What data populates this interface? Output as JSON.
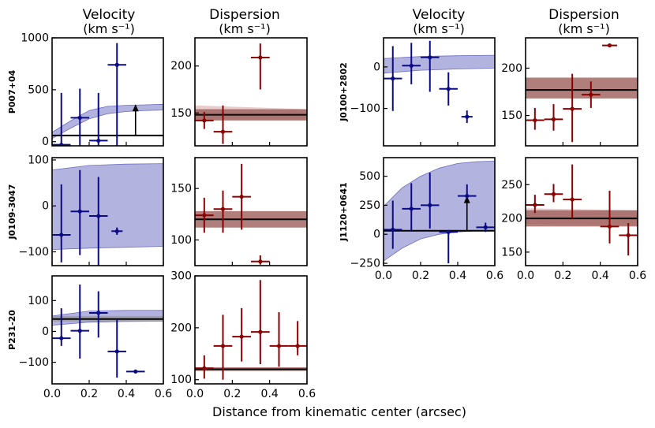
{
  "figure": {
    "xlabel": "Distance from kinematic center (arcsec)",
    "col_velocity_title": "Velocity",
    "col_dispersion_title": "Dispersion",
    "units": "(km s⁻¹)"
  },
  "colors": {
    "velocity_points": "#0b0b86",
    "dispersion_points": "#8b0000",
    "velocity_band": "#9a9ad6",
    "dispersion_band": "#9e5f5a",
    "band_gray": "#9a9a9a",
    "axis": "#000000"
  },
  "chart_data": [
    {
      "type": "scatter",
      "galaxy": "P007+04",
      "quantity": "Velocity",
      "xlim": [
        0,
        0.6
      ],
      "ylim": [
        -40,
        1000
      ],
      "yticks": [
        0,
        500,
        1000
      ],
      "xticks": [
        0.0,
        0.2,
        0.4,
        0.6
      ],
      "points": [
        {
          "x": 0.05,
          "y": -30,
          "xerr": 0.05,
          "yerr_lo": 70,
          "yerr_hi": 500
        },
        {
          "x": 0.15,
          "y": 230,
          "xerr": 0.05,
          "yerr_lo": 290,
          "yerr_hi": 280
        },
        {
          "x": 0.25,
          "y": 10,
          "xerr": 0.05,
          "yerr_lo": 60,
          "yerr_hi": 460
        },
        {
          "x": 0.35,
          "y": 740,
          "xerr": 0.05,
          "yerr_lo": 790,
          "yerr_hi": 210
        }
      ],
      "lower_limits": [
        {
          "x": 0.45,
          "y": 60,
          "to": 360
        }
      ],
      "model_band": {
        "x": [
          0,
          0.1,
          0.2,
          0.3,
          0.4,
          0.5,
          0.6
        ],
        "lo": [
          30,
          130,
          220,
          270,
          290,
          300,
          305
        ],
        "hi": [
          90,
          200,
          300,
          340,
          350,
          355,
          360
        ]
      },
      "hline": 60
    },
    {
      "type": "scatter",
      "galaxy": "P007+04",
      "quantity": "Dispersion",
      "xlim": [
        0,
        0.6
      ],
      "ylim": [
        115,
        230
      ],
      "yticks": [
        150,
        200
      ],
      "xticks": [
        0.0,
        0.2,
        0.4,
        0.6
      ],
      "points": [
        {
          "x": 0.05,
          "y": 142,
          "xerr": 0.05,
          "yerr_lo": 9,
          "yerr_hi": 9
        },
        {
          "x": 0.15,
          "y": 130,
          "xerr": 0.05,
          "yerr_lo": 13,
          "yerr_hi": 28
        },
        {
          "x": 0.35,
          "y": 209,
          "xerr": 0.05,
          "yerr_lo": 34,
          "yerr_hi": 15
        }
      ],
      "band": {
        "lo": 142,
        "hi": 154
      },
      "band2": {
        "x": [
          0,
          0.6
        ],
        "lo": [
          143,
          143
        ],
        "hi": [
          158,
          154
        ]
      },
      "hline": 148
    },
    {
      "type": "scatter",
      "galaxy": "J0109-3047",
      "quantity": "Velocity",
      "xlim": [
        0,
        0.6
      ],
      "ylim": [
        -130,
        105
      ],
      "yticks": [
        -100,
        0,
        100
      ],
      "xticks": [
        0.0,
        0.2,
        0.4,
        0.6
      ],
      "points": [
        {
          "x": 0.05,
          "y": -63,
          "xerr": 0.05,
          "yerr_lo": 60,
          "yerr_hi": 110
        },
        {
          "x": 0.15,
          "y": -12,
          "xerr": 0.05,
          "yerr_lo": 95,
          "yerr_hi": 90
        },
        {
          "x": 0.25,
          "y": -22,
          "xerr": 0.05,
          "yerr_lo": 110,
          "yerr_hi": 85
        },
        {
          "x": 0.35,
          "y": -55,
          "xerr": 0.03,
          "yerr_lo": 8,
          "yerr_hi": 8
        }
      ],
      "model_band": {
        "x": [
          0,
          0.2,
          0.4,
          0.6
        ],
        "lo": [
          -95,
          -92,
          -90,
          -88
        ],
        "hi": [
          78,
          88,
          91,
          92
        ]
      }
    },
    {
      "type": "scatter",
      "galaxy": "J0109-3047",
      "quantity": "Dispersion",
      "xlim": [
        0,
        0.6
      ],
      "ylim": [
        75,
        180
      ],
      "yticks": [
        100,
        150
      ],
      "xticks": [
        0.0,
        0.2,
        0.4,
        0.6
      ],
      "points": [
        {
          "x": 0.05,
          "y": 124,
          "xerr": 0.05,
          "yerr_lo": 17,
          "yerr_hi": 17
        },
        {
          "x": 0.15,
          "y": 130,
          "xerr": 0.05,
          "yerr_lo": 23,
          "yerr_hi": 18
        },
        {
          "x": 0.25,
          "y": 142,
          "xerr": 0.05,
          "yerr_lo": 32,
          "yerr_hi": 32
        },
        {
          "x": 0.35,
          "y": 79,
          "xerr": 0.05,
          "yerr_lo": 3,
          "yerr_hi": 6
        }
      ],
      "band": {
        "lo": 112,
        "hi": 128
      },
      "hline": 120
    },
    {
      "type": "scatter",
      "galaxy": "P231-20",
      "quantity": "Velocity",
      "xlim": [
        0,
        0.6
      ],
      "ylim": [
        -170,
        180
      ],
      "yticks": [
        -100,
        0,
        100
      ],
      "xticks": [
        0.0,
        0.2,
        0.4,
        0.6
      ],
      "xticklabels": [
        "0.0",
        "0.2",
        "0.4",
        "0.6"
      ],
      "points": [
        {
          "x": 0.05,
          "y": -22,
          "xerr": 0.05,
          "yerr_lo": 25,
          "yerr_hi": 97
        },
        {
          "x": 0.15,
          "y": 2,
          "xerr": 0.05,
          "yerr_lo": 90,
          "yerr_hi": 150
        },
        {
          "x": 0.25,
          "y": 60,
          "xerr": 0.05,
          "yerr_lo": 80,
          "yerr_hi": 70
        },
        {
          "x": 0.35,
          "y": -65,
          "xerr": 0.05,
          "yerr_lo": 85,
          "yerr_hi": 105
        },
        {
          "x": 0.45,
          "y": -130,
          "xerr": 0.05,
          "yerr_lo": 0,
          "yerr_hi": 0
        }
      ],
      "model_band": {
        "x": [
          0,
          0.2,
          0.4,
          0.6
        ],
        "lo": [
          20,
          30,
          32,
          33
        ],
        "hi": [
          50,
          66,
          68,
          68
        ]
      },
      "band": {
        "lo": 32,
        "hi": 50
      },
      "hline": 40
    },
    {
      "type": "scatter",
      "galaxy": "P231-20",
      "quantity": "Dispersion",
      "xlim": [
        0,
        0.6
      ],
      "ylim": [
        92,
        300
      ],
      "yticks": [
        100,
        200,
        300
      ],
      "xticks": [
        0.0,
        0.2,
        0.4,
        0.6
      ],
      "xticklabels": [
        "0.0",
        "0.2",
        "0.4",
        "0.6"
      ],
      "points": [
        {
          "x": 0.05,
          "y": 122,
          "xerr": 0.05,
          "yerr_lo": 20,
          "yerr_hi": 25
        },
        {
          "x": 0.15,
          "y": 165,
          "xerr": 0.05,
          "yerr_lo": 65,
          "yerr_hi": 60
        },
        {
          "x": 0.25,
          "y": 183,
          "xerr": 0.05,
          "yerr_lo": 48,
          "yerr_hi": 55
        },
        {
          "x": 0.35,
          "y": 192,
          "xerr": 0.05,
          "yerr_lo": 62,
          "yerr_hi": 100
        },
        {
          "x": 0.45,
          "y": 165,
          "xerr": 0.05,
          "yerr_lo": 40,
          "yerr_hi": 65
        },
        {
          "x": 0.55,
          "y": 165,
          "xerr": 0.05,
          "yerr_lo": 18,
          "yerr_hi": 48
        }
      ],
      "band": {
        "lo": 117,
        "hi": 124
      },
      "hline": 120
    },
    {
      "type": "scatter",
      "galaxy": "J0100+2802",
      "quantity": "Velocity",
      "xlim": [
        0,
        0.6
      ],
      "ylim": [
        -190,
        70
      ],
      "yticks": [
        -100,
        0
      ],
      "xticks": [
        0.0,
        0.2,
        0.4,
        0.6
      ],
      "points": [
        {
          "x": 0.05,
          "y": -28,
          "xerr": 0.05,
          "yerr_lo": 78,
          "yerr_hi": 78
        },
        {
          "x": 0.15,
          "y": 3,
          "xerr": 0.05,
          "yerr_lo": 45,
          "yerr_hi": 55
        },
        {
          "x": 0.25,
          "y": 23,
          "xerr": 0.05,
          "yerr_lo": 83,
          "yerr_hi": 40
        },
        {
          "x": 0.35,
          "y": -53,
          "xerr": 0.05,
          "yerr_lo": 40,
          "yerr_hi": 40
        },
        {
          "x": 0.45,
          "y": -120,
          "xerr": 0.03,
          "yerr_lo": 15,
          "yerr_hi": 15
        }
      ],
      "model_band": {
        "x": [
          0,
          0.2,
          0.4,
          0.6
        ],
        "lo": [
          -15,
          -8,
          -5,
          -3
        ],
        "hi": [
          20,
          25,
          27,
          28
        ]
      }
    },
    {
      "type": "scatter",
      "galaxy": "J0100+2802",
      "quantity": "Dispersion",
      "xlim": [
        0,
        0.6
      ],
      "ylim": [
        118,
        232
      ],
      "yticks": [
        150,
        200
      ],
      "xticks": [
        0.0,
        0.2,
        0.4,
        0.6
      ],
      "points": [
        {
          "x": 0.05,
          "y": 145,
          "xerr": 0.05,
          "yerr_lo": 10,
          "yerr_hi": 13
        },
        {
          "x": 0.15,
          "y": 146,
          "xerr": 0.05,
          "yerr_lo": 12,
          "yerr_hi": 16
        },
        {
          "x": 0.25,
          "y": 157,
          "xerr": 0.05,
          "yerr_lo": 35,
          "yerr_hi": 37
        },
        {
          "x": 0.35,
          "y": 172,
          "xerr": 0.05,
          "yerr_lo": 14,
          "yerr_hi": 14
        },
        {
          "x": 0.45,
          "y": 224,
          "xerr": 0.04,
          "yerr_lo": 0,
          "yerr_hi": 0
        }
      ],
      "band": {
        "lo": 168,
        "hi": 190
      },
      "hline": 177
    },
    {
      "type": "scatter",
      "galaxy": "J1120+0641",
      "quantity": "Velocity",
      "xlim": [
        0,
        0.6
      ],
      "ylim": [
        -270,
        660
      ],
      "yticks": [
        -250,
        0,
        250,
        500
      ],
      "xticks": [
        0.0,
        0.2,
        0.4,
        0.6
      ],
      "xticklabels": [
        "0.0",
        "0.2",
        "0.4",
        "0.6"
      ],
      "points": [
        {
          "x": 0.05,
          "y": 40,
          "xerr": 0.05,
          "yerr_lo": 165,
          "yerr_hi": 250
        },
        {
          "x": 0.15,
          "y": 220,
          "xerr": 0.05,
          "yerr_lo": 190,
          "yerr_hi": 220
        },
        {
          "x": 0.25,
          "y": 250,
          "xerr": 0.05,
          "yerr_lo": 200,
          "yerr_hi": 280
        },
        {
          "x": 0.35,
          "y": 20,
          "xerr": 0.05,
          "yerr_lo": 270,
          "yerr_hi": 0
        },
        {
          "x": 0.45,
          "y": 330,
          "xerr": 0.05,
          "yerr_lo": 0,
          "yerr_hi": 100
        },
        {
          "x": 0.55,
          "y": 60,
          "xerr": 0.05,
          "yerr_lo": 40,
          "yerr_hi": 40
        }
      ],
      "lower_limits": [
        {
          "x": 0.45,
          "y": 30,
          "to": 330
        }
      ],
      "model_band": {
        "x": [
          0,
          0.1,
          0.2,
          0.3,
          0.4,
          0.5,
          0.6
        ],
        "lo": [
          -230,
          -120,
          -40,
          0,
          20,
          30,
          35
        ],
        "hi": [
          240,
          400,
          500,
          570,
          610,
          625,
          630
        ]
      },
      "hline": 30
    },
    {
      "type": "scatter",
      "galaxy": "J1120+0641",
      "quantity": "Dispersion",
      "xlim": [
        0,
        0.6
      ],
      "ylim": [
        130,
        290
      ],
      "yticks": [
        150,
        200,
        250
      ],
      "xticks": [
        0.0,
        0.2,
        0.4,
        0.6
      ],
      "xticklabels": [
        "0.0",
        "0.2",
        "0.4",
        "0.6"
      ],
      "points": [
        {
          "x": 0.05,
          "y": 220,
          "xerr": 0.05,
          "yerr_lo": 12,
          "yerr_hi": 15
        },
        {
          "x": 0.15,
          "y": 236,
          "xerr": 0.05,
          "yerr_lo": 12,
          "yerr_hi": 15
        },
        {
          "x": 0.25,
          "y": 228,
          "xerr": 0.05,
          "yerr_lo": 28,
          "yerr_hi": 52
        },
        {
          "x": 0.45,
          "y": 188,
          "xerr": 0.05,
          "yerr_lo": 25,
          "yerr_hi": 53
        },
        {
          "x": 0.55,
          "y": 175,
          "xerr": 0.05,
          "yerr_lo": 30,
          "yerr_hi": 18
        }
      ],
      "band": {
        "lo": 188,
        "hi": 212
      },
      "band2": {
        "x": [
          0,
          0.6
        ],
        "lo": [
          192,
          190
        ],
        "hi": [
          215,
          212
        ]
      },
      "hline": 200
    }
  ]
}
